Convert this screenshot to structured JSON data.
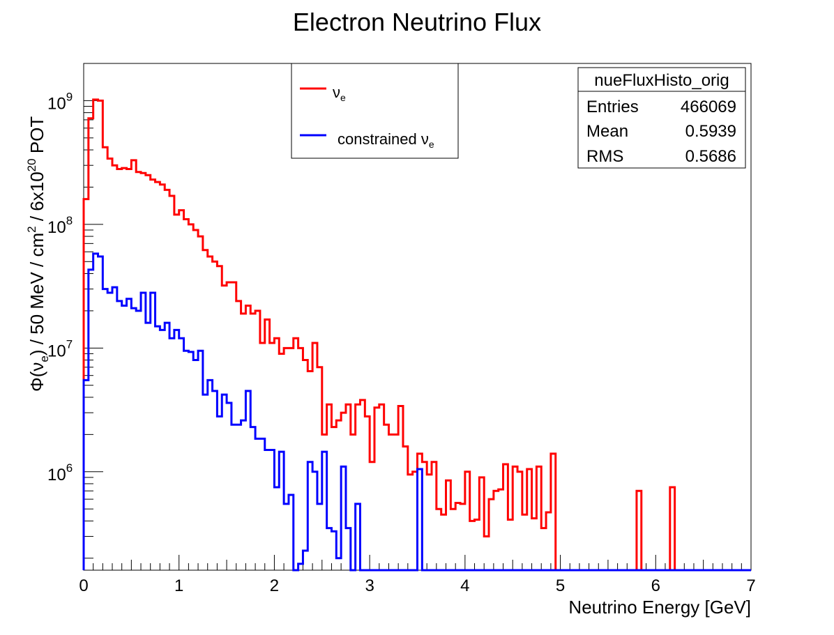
{
  "chart_data": {
    "type": "line",
    "title": "Electron Neutrino Flux",
    "xlabel": "Neutrino Energy [GeV]",
    "ylabel": {
      "prefix": "Φ(ν",
      "sub": "e",
      "mid": ") / 50 MeV / cm",
      "sup": "2",
      "mid2": " / 6x10",
      "sup2": "20",
      "suffix": " POT"
    },
    "xlim": [
      0,
      7
    ],
    "ylim": [
      160000,
      2000000000
    ],
    "yscale": "log",
    "bin_width": 0.05,
    "x_ticks": [
      "0",
      "1",
      "2",
      "3",
      "4",
      "5",
      "6",
      "7"
    ],
    "y_ticks": [
      {
        "base": "10",
        "exp": "6"
      },
      {
        "base": "10",
        "exp": "7"
      },
      {
        "base": "10",
        "exp": "8"
      },
      {
        "base": "10",
        "exp": "9"
      }
    ],
    "grid": false,
    "legend_position": "top-center",
    "series": [
      {
        "name_symbol": "ν",
        "name_sub": "e",
        "name_text": "",
        "color": "#ff0000",
        "values": [
          160000000,
          720000000,
          1020000000,
          1000000000,
          420000000,
          340000000,
          300000000,
          280000000,
          285000000,
          280000000,
          330000000,
          265000000,
          260000000,
          250000000,
          230000000,
          220000000,
          210000000,
          190000000,
          170000000,
          120000000,
          130000000,
          110000000,
          100000000,
          90000000,
          80000000,
          62000000,
          55000000,
          50000000,
          46000000,
          32000000,
          34000000,
          34000000,
          24000000,
          19000000,
          22000000,
          19000000,
          20000000,
          11000000,
          17000000,
          11000000,
          12000000,
          9000000,
          10000000,
          10000000,
          12000000,
          10000000,
          8000000,
          6500000,
          11000000,
          7000000,
          2000000,
          3500000,
          2300000,
          2600000,
          3000000,
          3500000,
          2000000,
          3500000,
          3800000,
          2800000,
          1200000,
          3300000,
          3500000,
          2400000,
          2000000,
          2000000,
          3400000,
          1600000,
          950000,
          1000000,
          1400000,
          1200000,
          950000,
          1200000,
          500000,
          450000,
          850000,
          500000,
          560000,
          550000,
          1000000,
          400000,
          410000,
          900000,
          300000,
          600000,
          700000,
          720000,
          1150000,
          410000,
          1100000,
          1000000,
          450000,
          1050000,
          420000,
          1100000,
          350000,
          470000,
          1400000,
          0,
          0,
          0,
          0,
          0,
          0,
          0,
          0,
          0,
          0,
          0,
          0,
          0,
          0,
          0,
          0,
          0,
          700000,
          0,
          0,
          0,
          0,
          0,
          0,
          750000,
          0,
          0,
          0,
          0,
          0,
          0,
          0,
          0,
          0,
          0,
          0,
          0,
          0,
          0,
          0,
          0
        ]
      },
      {
        "name_symbol": "ν",
        "name_sub": "e",
        "name_text": "constrained ",
        "color": "#0000ff",
        "values": [
          5500000,
          43000000,
          58000000,
          55000000,
          30000000,
          28000000,
          31000000,
          24000000,
          22000000,
          25000000,
          21000000,
          20000000,
          28000000,
          16000000,
          28000000,
          15000000,
          14000000,
          16000000,
          12000000,
          14000000,
          12000000,
          9500000,
          9300000,
          8000000,
          9500000,
          4200000,
          5500000,
          4500000,
          2800000,
          4200000,
          3600000,
          2400000,
          2400000,
          2600000,
          4500000,
          2300000,
          1850000,
          1850000,
          1500000,
          1500000,
          750000,
          1450000,
          550000,
          650000,
          0,
          180000,
          230000,
          1200000,
          1000000,
          550000,
          1450000,
          350000,
          330000,
          200000,
          1100000,
          350000,
          0,
          550000,
          0,
          0,
          0,
          0,
          0,
          0,
          0,
          0,
          0,
          0,
          0,
          0,
          1050000,
          0,
          0,
          0,
          0,
          0,
          0,
          0,
          0,
          0,
          0,
          0,
          0,
          0,
          0,
          0,
          0,
          0,
          0,
          0,
          0,
          0,
          0,
          0,
          0,
          0,
          0,
          0,
          0,
          0,
          0,
          0,
          0,
          0,
          0,
          0,
          0,
          0,
          0,
          0,
          0,
          0,
          0,
          0,
          0,
          0,
          0,
          0,
          0,
          0,
          0,
          0,
          0,
          0,
          0,
          0,
          0,
          0,
          0,
          0,
          0,
          0,
          0,
          0,
          0,
          0,
          0,
          0,
          0,
          0
        ]
      }
    ],
    "stats_box": {
      "title": "nueFluxHisto_orig",
      "rows": [
        {
          "label": "Entries",
          "value": "466069"
        },
        {
          "label": "Mean",
          "value": "0.5939"
        },
        {
          "label": "RMS",
          "value": "0.5686"
        }
      ]
    }
  }
}
